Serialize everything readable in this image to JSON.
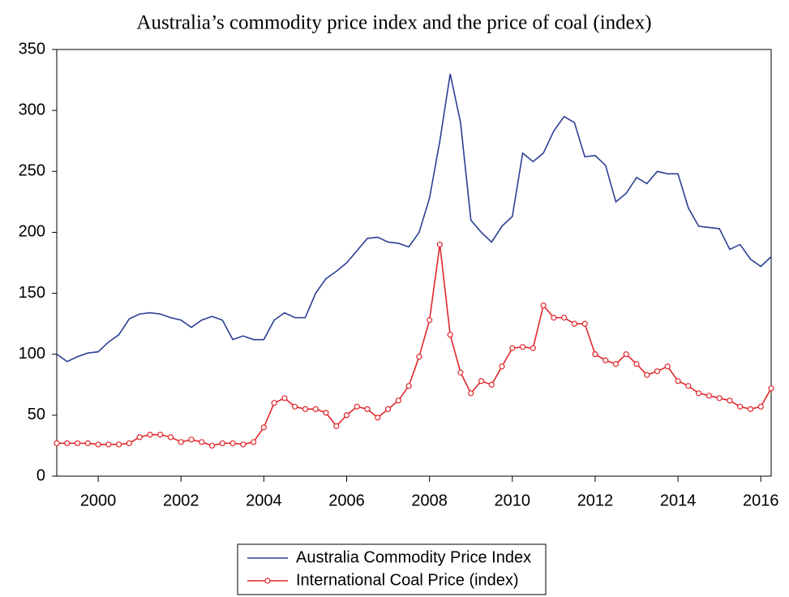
{
  "chart_data": {
    "type": "line",
    "title": "Australia’s commodity price index and the price of coal (index)",
    "x": [
      1999,
      1999.25,
      1999.5,
      1999.75,
      2000,
      2000.25,
      2000.5,
      2000.75,
      2001,
      2001.25,
      2001.5,
      2001.75,
      2002,
      2002.25,
      2002.5,
      2002.75,
      2003,
      2003.25,
      2003.5,
      2003.75,
      2004,
      2004.25,
      2004.5,
      2004.75,
      2005,
      2005.25,
      2005.5,
      2005.75,
      2006,
      2006.25,
      2006.5,
      2006.75,
      2007,
      2007.25,
      2007.5,
      2007.75,
      2008,
      2008.25,
      2008.5,
      2008.75,
      2009,
      2009.25,
      2009.5,
      2009.75,
      2010,
      2010.25,
      2010.5,
      2010.75,
      2011,
      2011.25,
      2011.5,
      2011.75,
      2012,
      2012.25,
      2012.5,
      2012.75,
      2013,
      2013.25,
      2013.5,
      2013.75,
      2014,
      2014.25,
      2014.5,
      2014.75,
      2015,
      2015.25,
      2015.5,
      2015.75,
      2016,
      2016.25
    ],
    "series": [
      {
        "name": "Australia Commodity Price Index",
        "color": "#2b3f94",
        "markers": false,
        "values": [
          100,
          94,
          98,
          101,
          102,
          110,
          116,
          129,
          133,
          134,
          133,
          130,
          128,
          122,
          128,
          131,
          128,
          112,
          115,
          112,
          112,
          128,
          134,
          130,
          130,
          150,
          162,
          168,
          175,
          185,
          195,
          196,
          192,
          191,
          188,
          200,
          228,
          275,
          330,
          290,
          210,
          200,
          192,
          205,
          213,
          265,
          258,
          265,
          283,
          295,
          290,
          262,
          263,
          255,
          225,
          232,
          245,
          240,
          250,
          248,
          248,
          220,
          205,
          204,
          203,
          186,
          190,
          178,
          172,
          180
        ]
      },
      {
        "name": "International Coal Price (index)",
        "color": "#e0262b",
        "markers": true,
        "values": [
          27,
          27,
          27,
          27,
          26,
          26,
          26,
          27,
          32,
          34,
          34,
          32,
          28,
          30,
          28,
          25,
          27,
          27,
          26,
          28,
          40,
          60,
          64,
          57,
          55,
          55,
          52,
          41,
          50,
          57,
          55,
          48,
          55,
          62,
          74,
          98,
          128,
          190,
          116,
          85,
          68,
          78,
          75,
          90,
          105,
          106,
          105,
          140,
          130,
          130,
          125,
          125,
          100,
          95,
          92,
          100,
          92,
          83,
          86,
          90,
          78,
          74,
          68,
          66,
          64,
          62,
          57,
          55,
          57,
          72
        ]
      }
    ],
    "xlim": [
      1999,
      2016.25
    ],
    "xticks": [
      2000,
      2002,
      2004,
      2006,
      2008,
      2010,
      2012,
      2014,
      2016
    ],
    "ylim": [
      0,
      350
    ],
    "yticks": [
      0,
      50,
      100,
      150,
      200,
      250,
      300,
      350
    ],
    "grid": false,
    "legend": "bottom"
  }
}
